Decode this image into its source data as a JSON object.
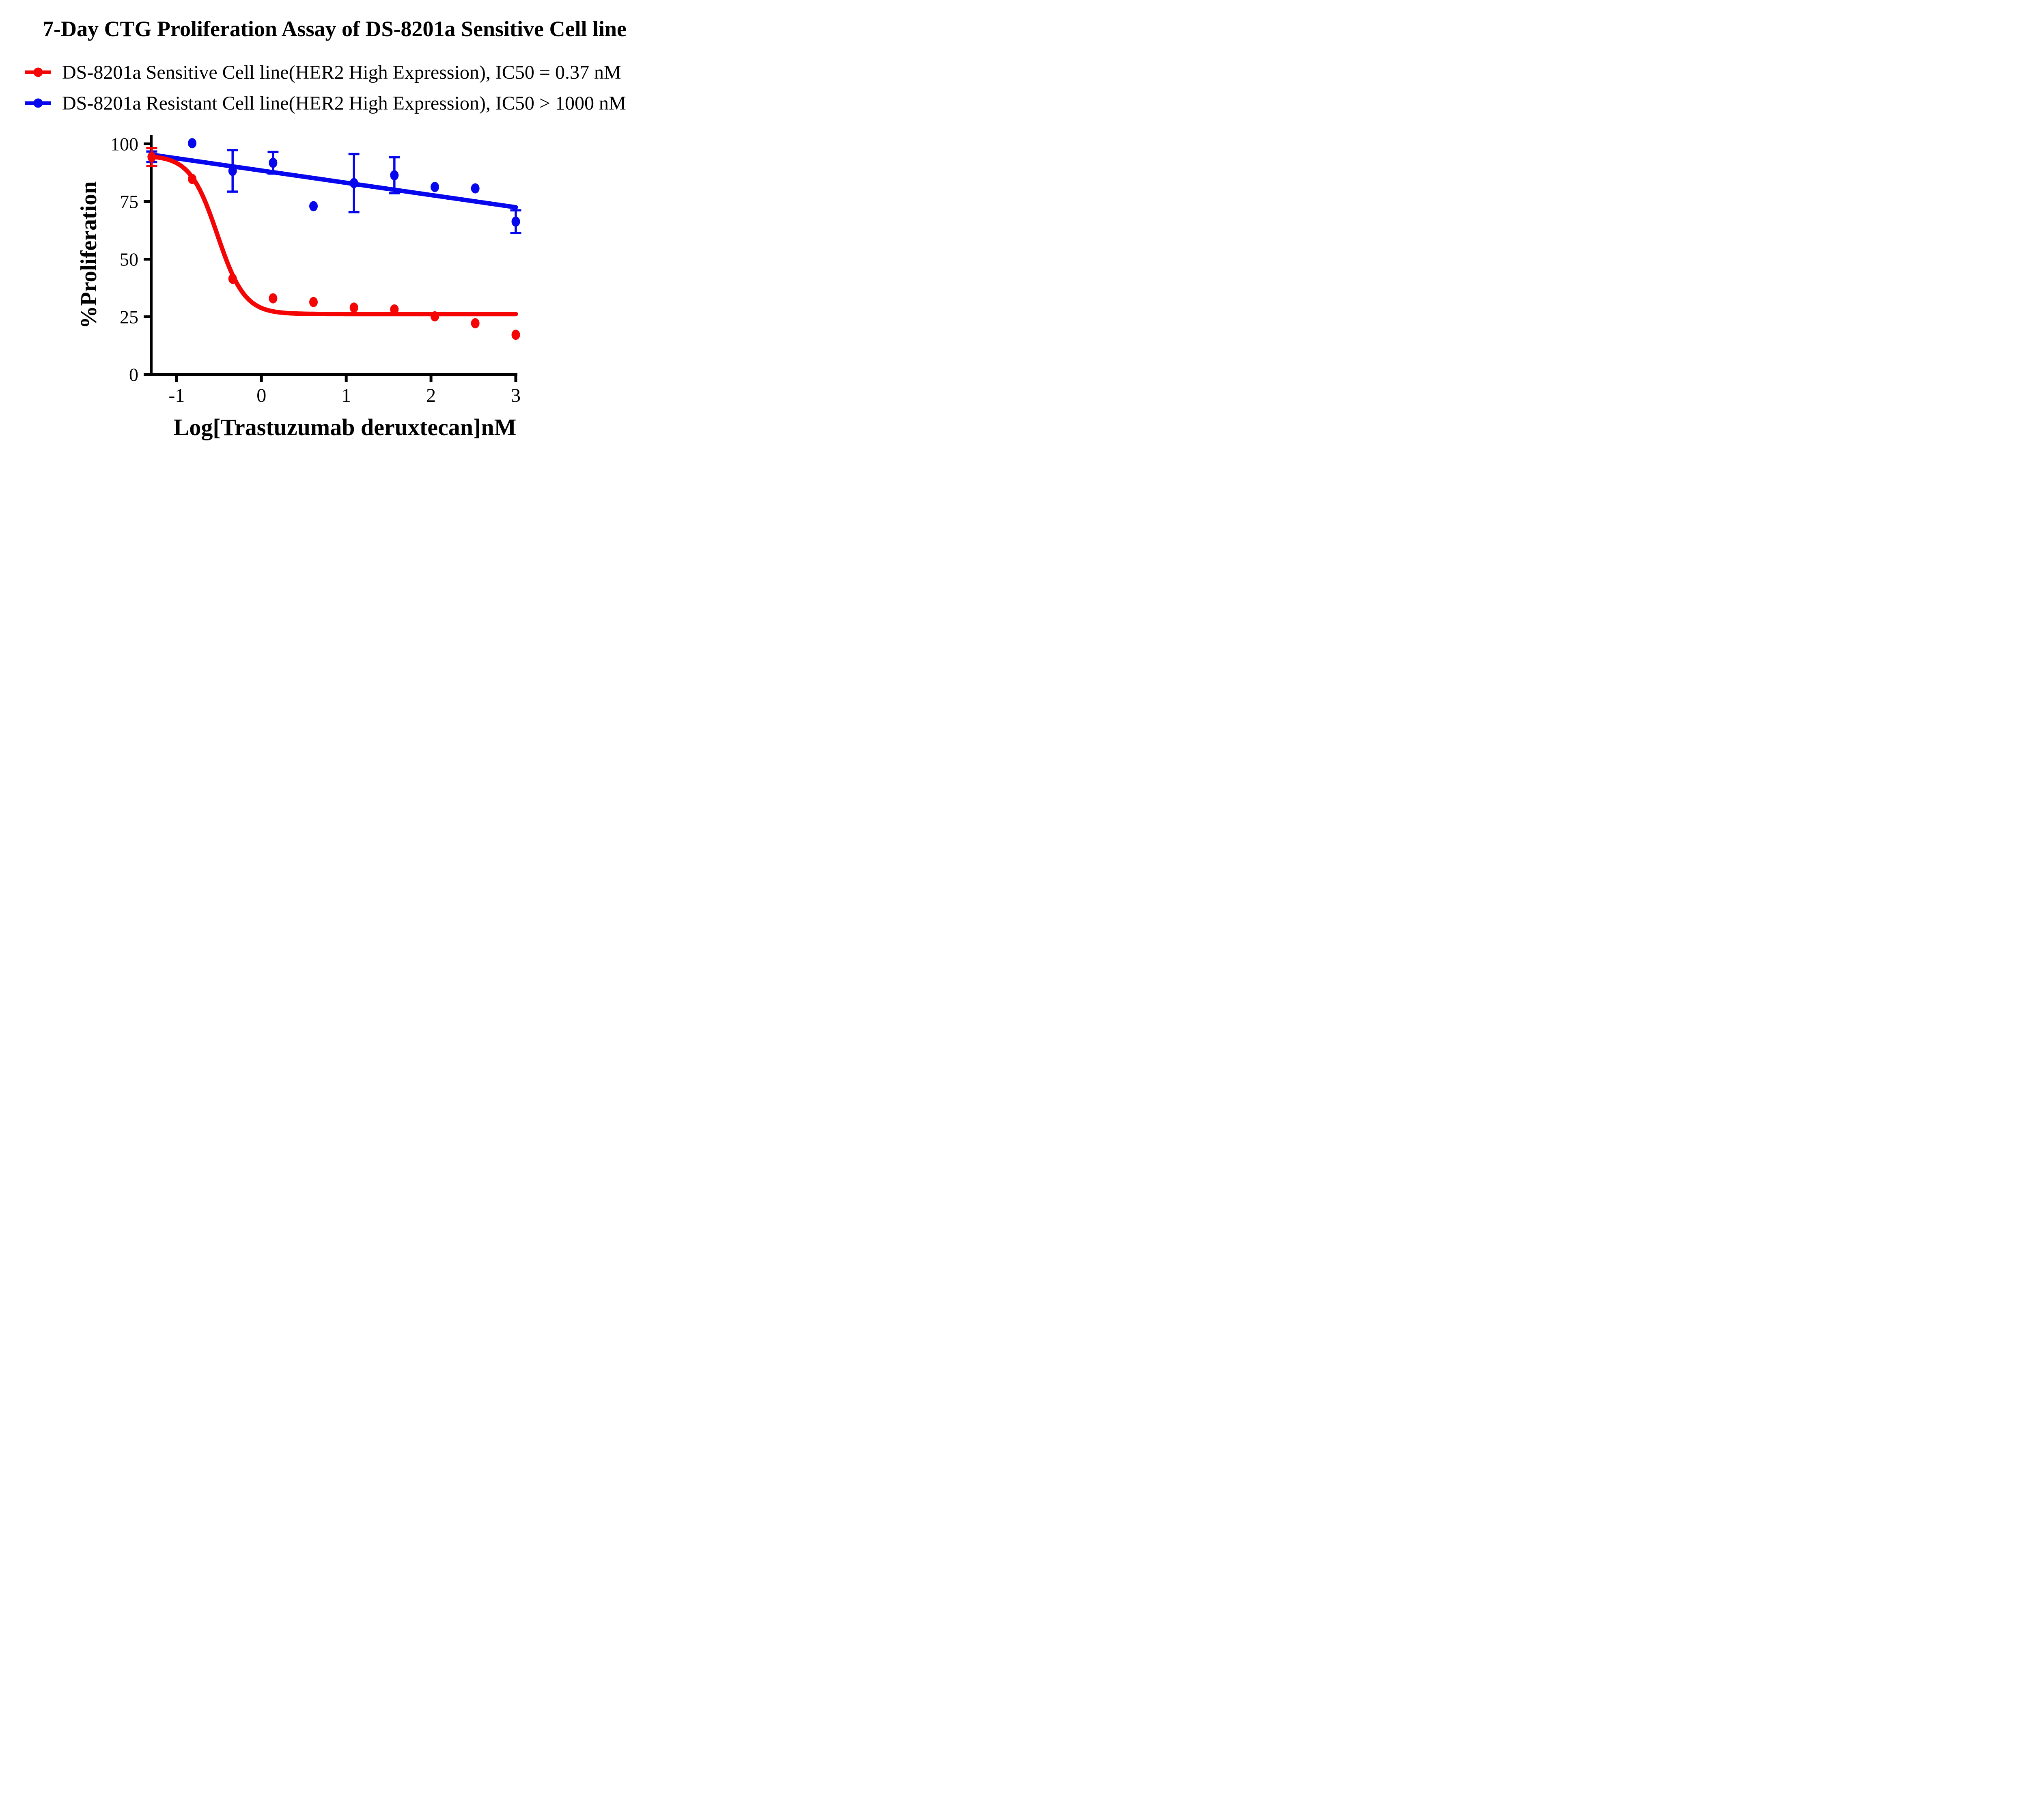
{
  "title": "7-Day CTG Proliferation Assay of DS-8201a Sensitive Cell line",
  "legend": {
    "items": [
      {
        "label": "DS-8201a Sensitive Cell line(HER2 High Expression), IC50 = 0.37 nM",
        "color": "#F40404",
        "marker": "filled-circle-on-line"
      },
      {
        "label": "DS-8201a Resistant Cell line(HER2 High Expression), IC50 > 1000 nM",
        "color": "#0707EE",
        "marker": "filled-circle-on-line"
      }
    ]
  },
  "chart_data": {
    "type": "scatter",
    "title": "7-Day CTG Proliferation Assay of DS-8201a Sensitive Cell line",
    "xlabel": "Log[Trastuzumab deruxtecan]nM",
    "ylabel": "%Proliferation",
    "xticks": [
      -1,
      0,
      1,
      2,
      3
    ],
    "yticks": [
      0,
      25,
      50,
      75,
      100
    ],
    "xlim": [
      -1.3,
      3.0
    ],
    "ylim": [
      0,
      100
    ],
    "grid": false,
    "legend_position": "top-left-above-plot",
    "axis_map": {
      "x_origin": 644.25,
      "x_scale": 208.92,
      "y_origin": 922.5,
      "y_scale": 5.68
    },
    "series": [
      {
        "name": "sensitive",
        "label": "DS-8201a Sensitive Cell line(HER2 High Expression), IC50 = 0.37 nM",
        "ic50": "0.37 nM",
        "color": "#F40404",
        "x": [
          -1.294,
          -0.817,
          -0.34,
          0.137,
          0.614,
          1.091,
          1.568,
          2.045,
          2.522,
          3.0
        ],
        "y": [
          94.3,
          84.8,
          41.5,
          33.0,
          31.4,
          29.0,
          28.2,
          25.2,
          22.2,
          17.2
        ],
        "err": [
          3.9,
          null,
          null,
          null,
          null,
          null,
          null,
          null,
          null,
          null
        ],
        "fit": {
          "type": "hill",
          "top": 95.0,
          "bottom": 26.2,
          "log_ic50": -0.52,
          "hill": 2.7,
          "x_start": -1.294,
          "x_end": 3.0
        }
      },
      {
        "name": "resistant",
        "label": "DS-8201a Resistant Cell line(HER2 High Expression), IC50 > 1000 nM",
        "ic50": "> 1000 nM",
        "color": "#0707EE",
        "x": [
          -1.294,
          -0.817,
          -0.34,
          0.137,
          0.614,
          1.091,
          1.568,
          2.045,
          2.522,
          3.0
        ],
        "y": [
          94.4,
          100.3,
          88.3,
          91.8,
          73.0,
          83.0,
          86.4,
          81.3,
          80.7,
          66.3
        ],
        "err": [
          2.3,
          null,
          9.0,
          4.7,
          null,
          12.6,
          7.8,
          null,
          null,
          4.9
        ],
        "fit": {
          "type": "line",
          "x1": -1.294,
          "y1": 95.3,
          "x2": 3.0,
          "y2": 72.5
        }
      }
    ]
  }
}
